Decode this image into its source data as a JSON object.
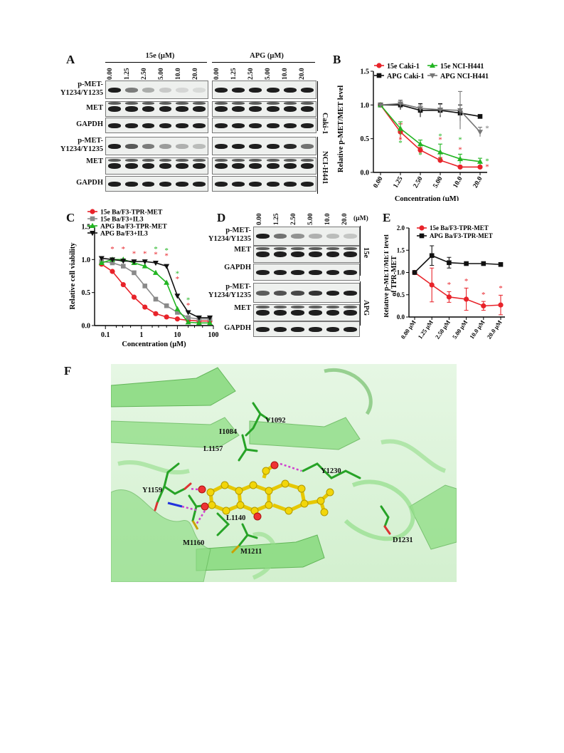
{
  "panelA": {
    "letter": "A",
    "header_15e": "15e (µM)",
    "header_apg": "APG (µM)",
    "concs": [
      "0.00",
      "1.25",
      "2.50",
      "5.00",
      "10.0",
      "20.0"
    ],
    "rows": [
      "p-MET-\nY1234/Y1235",
      "MET",
      "GAPDH",
      "p-MET-\nY1234/Y1235",
      "MET",
      "GAPDH"
    ],
    "cell_caki": "Caki-1",
    "cell_nci": "NCI-H441",
    "intensity_15e": [
      [
        1.0,
        0.55,
        0.32,
        0.18,
        0.12,
        0.1
      ],
      [
        1,
        1,
        1,
        1,
        1,
        1
      ],
      [
        1,
        1,
        1,
        1,
        1,
        1
      ],
      [
        1.0,
        0.72,
        0.55,
        0.4,
        0.3,
        0.25
      ],
      [
        1,
        1,
        1,
        1,
        1,
        1
      ],
      [
        1,
        1,
        1,
        1,
        1,
        1
      ]
    ],
    "intensity_apg": [
      [
        1,
        1,
        1,
        1,
        1,
        1
      ],
      [
        1,
        1,
        1,
        1,
        1,
        1
      ],
      [
        1,
        1,
        1,
        1,
        1,
        1
      ],
      [
        1,
        1,
        1,
        1,
        0.95,
        0.6
      ],
      [
        1,
        1,
        1,
        1,
        1,
        1
      ],
      [
        1,
        1,
        1,
        1,
        1,
        1
      ]
    ]
  },
  "panelB": {
    "letter": "B",
    "chart_data": {
      "type": "line",
      "ylabel": "Relative p-MET/MET level",
      "xlabel": "Concentration (µM)",
      "categories": [
        "0.00",
        "1.25",
        "2.50",
        "5.00",
        "10.0",
        "20.0"
      ],
      "ylim": [
        0,
        1.5
      ],
      "yticks": [
        "0.0",
        "0.5",
        "1.0",
        "1.5"
      ],
      "series": [
        {
          "name": "15e Caki-1",
          "color": "#e8232a",
          "marker": "circle",
          "values": [
            1.0,
            0.6,
            0.33,
            0.18,
            0.08,
            0.08
          ],
          "err": [
            0,
            0.12,
            0.04,
            0.04,
            0.02,
            0.02
          ]
        },
        {
          "name": "APG Caki-1",
          "color": "#111111",
          "marker": "square",
          "values": [
            1.0,
            1.0,
            0.92,
            0.92,
            0.88,
            0.83
          ],
          "err": [
            0,
            0.07,
            0.1,
            0.1,
            0.12,
            0
          ]
        },
        {
          "name": "15e NCI-H441",
          "color": "#22b522",
          "marker": "triangle",
          "values": [
            1.0,
            0.65,
            0.42,
            0.3,
            0.2,
            0.16
          ],
          "err": [
            0,
            0.1,
            0.06,
            0.12,
            0.07,
            0.05
          ]
        },
        {
          "name": "APG  NCI-H441",
          "color": "#777777",
          "marker": "tri-down",
          "values": [
            1.0,
            1.02,
            0.95,
            0.93,
            0.92,
            0.6
          ],
          "err": [
            0,
            0.05,
            0.05,
            0.08,
            0.28,
            0.07
          ]
        }
      ],
      "stars": "*"
    }
  },
  "panelC": {
    "letter": "C",
    "chart_data": {
      "type": "line",
      "ylabel": "Relative cell viability",
      "xlabel": "Concentration (µM)",
      "xscale": "log",
      "xticks": [
        "0.1",
        "1",
        "10",
        "100"
      ],
      "yticks": [
        "0.0",
        "0.5",
        "1.0",
        "1.5"
      ],
      "ylim": [
        0,
        1.5
      ],
      "x": [
        0.078,
        0.156,
        0.313,
        0.625,
        1.25,
        2.5,
        5,
        10,
        20,
        40,
        80
      ],
      "series": [
        {
          "name": "15e Ba/F3-TPR-MET",
          "color": "#e8232a",
          "marker": "circle",
          "values": [
            0.93,
            0.82,
            0.62,
            0.43,
            0.28,
            0.18,
            0.13,
            0.1,
            0.08,
            0.07,
            0.07
          ]
        },
        {
          "name": "15e Ba/F3+IL3",
          "color": "#8a8a8a",
          "marker": "square",
          "values": [
            0.97,
            0.95,
            0.9,
            0.8,
            0.6,
            0.4,
            0.3,
            0.2,
            0.12,
            0.1,
            0.1
          ]
        },
        {
          "name": "APG Ba/F3-TPR-MET",
          "color": "#22b522",
          "marker": "triangle",
          "values": [
            0.95,
            1.0,
            1.0,
            0.95,
            0.9,
            0.8,
            0.65,
            0.25,
            0.05,
            0.04,
            0.04
          ]
        },
        {
          "name": "APG Ba/F3+IL3",
          "color": "#111111",
          "marker": "tri-down",
          "values": [
            1.02,
            1.0,
            0.98,
            0.97,
            0.97,
            0.95,
            0.9,
            0.45,
            0.2,
            0.12,
            0.12
          ]
        }
      ],
      "stars": "*"
    }
  },
  "panelD": {
    "letter": "D",
    "concs": [
      "0.00",
      "1.25",
      "2.50",
      "5.00",
      "10.0",
      "20.0"
    ],
    "unit": "(µM)",
    "rows": [
      "p-MET-\nY1234/Y1235",
      "MET",
      "GAPDH",
      "p-MET-\nY1234/Y1235",
      "MET",
      "GAPDH"
    ],
    "side_15e": "15e",
    "side_apg": "APG",
    "intensity": [
      [
        1.0,
        0.6,
        0.45,
        0.3,
        0.25,
        0.2
      ],
      [
        1,
        1,
        1,
        1,
        1,
        1
      ],
      [
        1,
        1,
        1,
        1,
        1,
        1
      ],
      [
        0.7,
        0.75,
        0.8,
        0.9,
        1.0,
        1.0
      ],
      [
        1,
        1,
        1,
        1,
        1,
        1
      ],
      [
        1,
        1,
        1,
        1,
        1,
        1
      ]
    ]
  },
  "panelE": {
    "letter": "E",
    "chart_data": {
      "type": "line",
      "ylabel": "Relative p-MET/MET level\nof TPR-MET",
      "categories": [
        "0.00 µM",
        "1.25 µM",
        "2.50 µM",
        "5.00 µM",
        "10.0 µM",
        "20.0 µM"
      ],
      "ylim": [
        0,
        2.0
      ],
      "yticks": [
        "0.0",
        "0.5",
        "1.0",
        "1.5",
        "2.0"
      ],
      "series": [
        {
          "name": "15e Ba/F3-TPR-MET",
          "color": "#e8232a",
          "marker": "circle",
          "values": [
            1.0,
            0.72,
            0.45,
            0.4,
            0.25,
            0.27
          ],
          "err": [
            0,
            0.38,
            0.12,
            0.25,
            0.1,
            0.22
          ]
        },
        {
          "name": "APG Ba/F3-TPR-MET",
          "color": "#111111",
          "marker": "square",
          "values": [
            1.0,
            1.38,
            1.22,
            1.2,
            1.2,
            1.18
          ],
          "err": [
            0,
            0.22,
            0.12,
            0,
            0,
            0.04
          ]
        }
      ],
      "stars": "*"
    }
  },
  "panelF": {
    "letter": "F",
    "residues": [
      "V1092",
      "I1084",
      "L1157",
      "Y1230",
      "Y1159",
      "L1140",
      "M1160",
      "M1211",
      "D1231"
    ]
  }
}
